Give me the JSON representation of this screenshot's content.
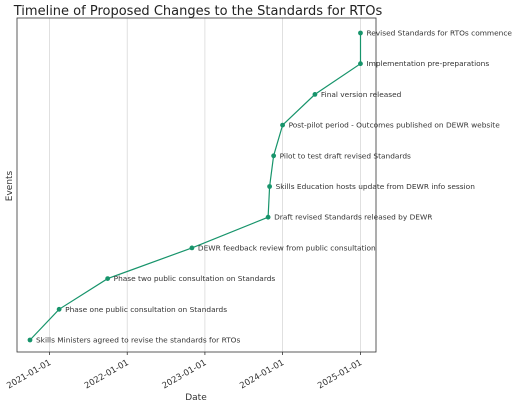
{
  "chart_data": {
    "type": "line",
    "title": "Timeline of Proposed Changes to the Standards for RTOs",
    "xlabel": "Date",
    "ylabel": "Events",
    "x_ticks": [
      "2021-01-01",
      "2022-01-01",
      "2023-01-01",
      "2024-01-01",
      "2025-01-01"
    ],
    "xlim": [
      "2020-08-01",
      "2025-03-15"
    ],
    "grid": "vertical",
    "color": "#17946b",
    "points": [
      {
        "date": "2020-10-01",
        "label": "Skills Ministers agreed to revise the standards for RTOs"
      },
      {
        "date": "2021-02-15",
        "label": "Phase one public consultation on Standards"
      },
      {
        "date": "2021-10-01",
        "label": "Phase two public consultation on Standards"
      },
      {
        "date": "2022-11-01",
        "label": "DEWR feedback review from public consultation"
      },
      {
        "date": "2023-10-25",
        "label": "Draft revised Standards released by DEWR"
      },
      {
        "date": "2023-11-01",
        "label": "Skills Education hosts update from DEWR info session"
      },
      {
        "date": "2023-11-20",
        "label": "Pilot to test draft revised Standards"
      },
      {
        "date": "2024-01-01",
        "label": "Post-pilot period - Outcomes published on DEWR website"
      },
      {
        "date": "2024-06-01",
        "label": "Final version released"
      },
      {
        "date": "2025-01-01",
        "label": "Implementation pre-preparations"
      },
      {
        "date": "2025-01-01",
        "label": "Revised Standards for RTOs commence"
      }
    ]
  }
}
